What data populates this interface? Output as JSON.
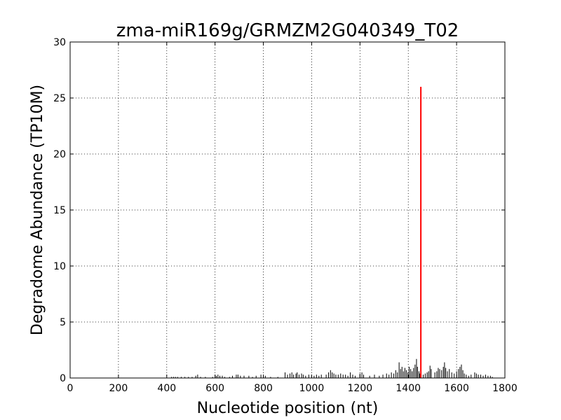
{
  "chart_data": {
    "type": "bar",
    "title": "zma-miR169g/GRMZM2G040349_T02",
    "xlabel": "Nucleotide position (nt)",
    "ylabel": "Degradome Abundance (TP10M)",
    "xlim": [
      0,
      1800
    ],
    "ylim": [
      0,
      30
    ],
    "xticks": [
      0,
      200,
      400,
      600,
      800,
      1000,
      1200,
      1400,
      1600,
      1800
    ],
    "yticks": [
      0,
      5,
      10,
      15,
      20,
      25,
      30
    ],
    "grid": true,
    "colors": {
      "background": "#ffffff",
      "degradome": "#000000",
      "target": "#ff0000",
      "grid": "#000000"
    },
    "series": [
      {
        "values": [
          [
            420,
            0.1
          ],
          [
            428,
            0.1
          ],
          [
            436,
            0.1
          ],
          [
            445,
            0.1
          ],
          [
            460,
            0.1
          ],
          [
            475,
            0.1
          ],
          [
            490,
            0.1
          ],
          [
            505,
            0.1
          ],
          [
            520,
            0.2
          ],
          [
            528,
            0.3
          ],
          [
            540,
            0.1
          ],
          [
            560,
            0.1
          ],
          [
            590,
            0.1
          ],
          [
            605,
            0.2
          ],
          [
            612,
            0.3
          ],
          [
            620,
            0.2
          ],
          [
            630,
            0.2
          ],
          [
            640,
            0.1
          ],
          [
            660,
            0.1
          ],
          [
            672,
            0.2
          ],
          [
            688,
            0.3
          ],
          [
            695,
            0.3
          ],
          [
            705,
            0.2
          ],
          [
            720,
            0.2
          ],
          [
            740,
            0.2
          ],
          [
            755,
            0.1
          ],
          [
            770,
            0.2
          ],
          [
            790,
            0.3
          ],
          [
            800,
            0.2
          ],
          [
            808,
            0.2
          ],
          [
            830,
            0.1
          ],
          [
            860,
            0.1
          ],
          [
            890,
            0.5
          ],
          [
            900,
            0.3
          ],
          [
            910,
            0.4
          ],
          [
            918,
            0.5
          ],
          [
            925,
            0.3
          ],
          [
            935,
            0.4
          ],
          [
            940,
            0.5
          ],
          [
            948,
            0.3
          ],
          [
            958,
            0.4
          ],
          [
            965,
            0.3
          ],
          [
            975,
            0.2
          ],
          [
            988,
            0.3
          ],
          [
            1000,
            0.2
          ],
          [
            1010,
            0.2
          ],
          [
            1020,
            0.3
          ],
          [
            1030,
            0.2
          ],
          [
            1040,
            0.3
          ],
          [
            1060,
            0.3
          ],
          [
            1070,
            0.5
          ],
          [
            1078,
            0.7
          ],
          [
            1085,
            0.5
          ],
          [
            1092,
            0.4
          ],
          [
            1100,
            0.3
          ],
          [
            1110,
            0.3
          ],
          [
            1120,
            0.4
          ],
          [
            1130,
            0.3
          ],
          [
            1140,
            0.3
          ],
          [
            1150,
            0.2
          ],
          [
            1160,
            0.5
          ],
          [
            1170,
            0.3
          ],
          [
            1180,
            0.2
          ],
          [
            1200,
            0.4
          ],
          [
            1208,
            0.5
          ],
          [
            1215,
            0.3
          ],
          [
            1240,
            0.2
          ],
          [
            1260,
            0.3
          ],
          [
            1280,
            0.2
          ],
          [
            1295,
            0.3
          ],
          [
            1310,
            0.4
          ],
          [
            1320,
            0.3
          ],
          [
            1330,
            0.5
          ],
          [
            1340,
            0.4
          ],
          [
            1348,
            0.7
          ],
          [
            1355,
            0.5
          ],
          [
            1362,
            1.4
          ],
          [
            1368,
            0.8
          ],
          [
            1374,
            1.0
          ],
          [
            1380,
            0.6
          ],
          [
            1386,
            0.9
          ],
          [
            1392,
            0.7
          ],
          [
            1398,
            0.5
          ],
          [
            1404,
            1.0
          ],
          [
            1410,
            0.8
          ],
          [
            1416,
            0.6
          ],
          [
            1422,
            0.9
          ],
          [
            1428,
            1.2
          ],
          [
            1434,
            1.7
          ],
          [
            1438,
            1.0
          ],
          [
            1444,
            0.6
          ],
          [
            1448,
            0.4
          ],
          [
            1462,
            0.3
          ],
          [
            1470,
            0.4
          ],
          [
            1478,
            0.5
          ],
          [
            1484,
            0.6
          ],
          [
            1490,
            1.1
          ],
          [
            1495,
            0.8
          ],
          [
            1510,
            0.5
          ],
          [
            1518,
            0.6
          ],
          [
            1524,
            0.9
          ],
          [
            1530,
            0.8
          ],
          [
            1538,
            0.7
          ],
          [
            1545,
            1.0
          ],
          [
            1550,
            1.4
          ],
          [
            1555,
            0.9
          ],
          [
            1562,
            0.6
          ],
          [
            1570,
            0.8
          ],
          [
            1580,
            0.5
          ],
          [
            1590,
            0.4
          ],
          [
            1600,
            0.6
          ],
          [
            1608,
            0.8
          ],
          [
            1614,
            1.0
          ],
          [
            1620,
            1.2
          ],
          [
            1626,
            0.7
          ],
          [
            1632,
            0.4
          ],
          [
            1640,
            0.3
          ],
          [
            1650,
            0.2
          ],
          [
            1660,
            0.3
          ],
          [
            1675,
            0.5
          ],
          [
            1682,
            0.4
          ],
          [
            1690,
            0.3
          ],
          [
            1700,
            0.3
          ],
          [
            1710,
            0.2
          ],
          [
            1720,
            0.3
          ],
          [
            1730,
            0.2
          ],
          [
            1740,
            0.2
          ],
          [
            1748,
            0.1
          ]
        ]
      },
      {
        "values": [
          [
            1452,
            26
          ]
        ]
      }
    ]
  }
}
